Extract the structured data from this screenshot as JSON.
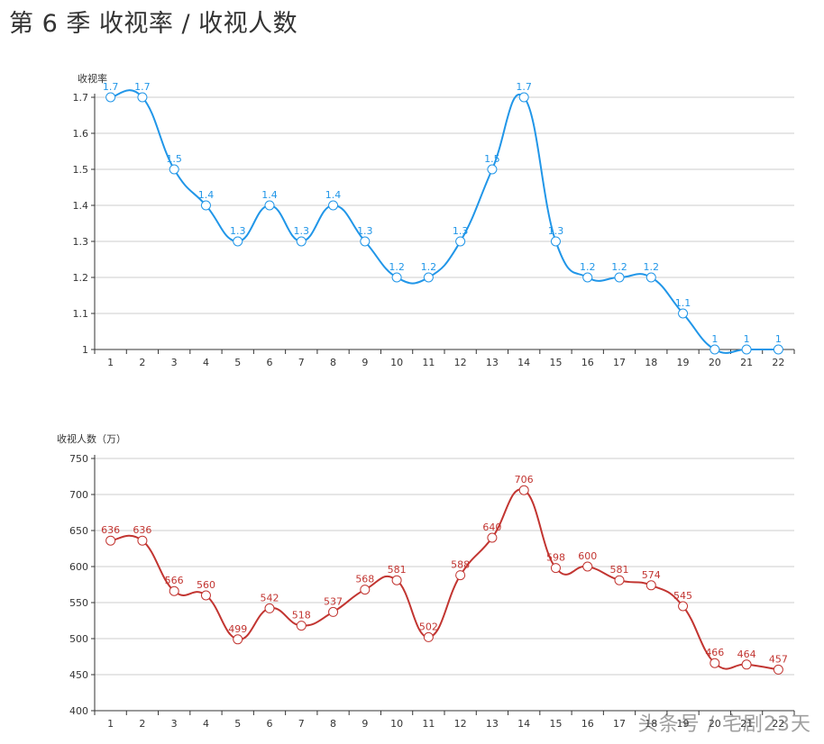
{
  "title": "第 6 季 收视率 / 收视人数",
  "watermark": "头条号 / 宅剧23天",
  "chart_data": [
    {
      "type": "line",
      "smooth": true,
      "color": "#2196e8",
      "ylabel": "收视率",
      "xlabel": "",
      "ylim": [
        1,
        1.7
      ],
      "yticks": [
        "1",
        "1.1",
        "1.2",
        "1.3",
        "1.4",
        "1.5",
        "1.6",
        "1.7"
      ],
      "grid": true,
      "categories": [
        "1",
        "2",
        "3",
        "4",
        "5",
        "6",
        "7",
        "8",
        "9",
        "10",
        "11",
        "12",
        "13",
        "14",
        "15",
        "16",
        "17",
        "18",
        "19",
        "20",
        "21",
        "22"
      ],
      "values": [
        1.7,
        1.7,
        1.5,
        1.4,
        1.3,
        1.4,
        1.3,
        1.4,
        1.3,
        1.2,
        1.2,
        1.3,
        1.5,
        1.7,
        1.3,
        1.2,
        1.2,
        1.2,
        1.1,
        1,
        1,
        1
      ],
      "labels": [
        "1.7",
        "1.7",
        "1.5",
        "1.4",
        "1.3",
        "1.4",
        "1.3",
        "1.4",
        "1.3",
        "1.2",
        "1.2",
        "1.3",
        "1.5",
        "1.7",
        "1.3",
        "1.2",
        "1.2",
        "1.2",
        "1.1",
        "1",
        "1",
        "1"
      ]
    },
    {
      "type": "line",
      "smooth": true,
      "color": "#c23531",
      "ylabel": "收视人数（万）",
      "xlabel": "",
      "ylim": [
        400,
        750
      ],
      "yticks": [
        "400",
        "450",
        "500",
        "550",
        "600",
        "650",
        "700",
        "750"
      ],
      "grid": true,
      "categories": [
        "1",
        "2",
        "3",
        "4",
        "5",
        "6",
        "7",
        "8",
        "9",
        "10",
        "11",
        "12",
        "13",
        "14",
        "15",
        "16",
        "17",
        "18",
        "19",
        "20",
        "21",
        "22"
      ],
      "values": [
        636,
        636,
        566,
        560,
        499,
        542,
        518,
        537,
        568,
        581,
        502,
        588,
        640,
        706,
        598,
        600,
        581,
        574,
        545,
        466,
        464,
        457
      ],
      "labels": [
        "636",
        "636",
        "566",
        "560",
        "499",
        "542",
        "518",
        "537",
        "568",
        "581",
        "502",
        "588",
        "640",
        "706",
        "598",
        "600",
        "581",
        "574",
        "545",
        "466",
        "464",
        "457"
      ]
    }
  ]
}
